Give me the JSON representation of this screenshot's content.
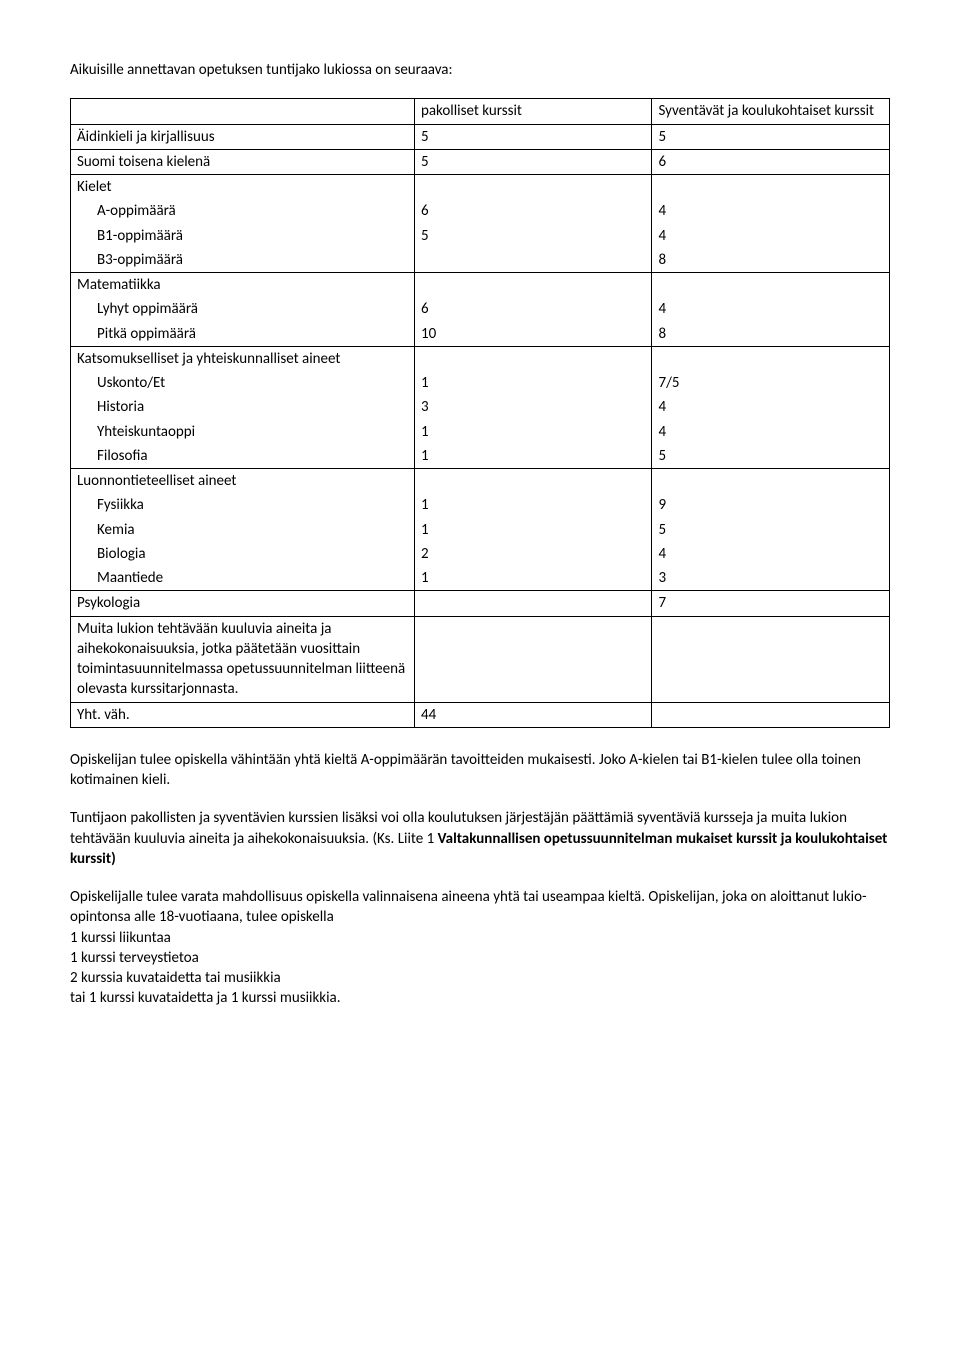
{
  "intro": "Aikuisille annettavan opetuksen tuntijako lukiossa on seuraava:",
  "table": {
    "header": {
      "col1": "",
      "col2": "pakolliset kurssit",
      "col3": "Syventävät ja koulukohtaiset kurssit"
    },
    "rows": [
      {
        "label": "Äidinkieli ja kirjallisuus",
        "a": "5",
        "b": "5",
        "indent": false
      },
      {
        "label": "Suomi toisena kielenä",
        "a": "5",
        "b": "6",
        "indent": false
      },
      {
        "label": "Kielet",
        "a": "",
        "b": "",
        "indent": false
      },
      {
        "label": "A-oppimäärä",
        "a": "6",
        "b": "4",
        "indent": true
      },
      {
        "label": "B1-oppimäärä",
        "a": "5",
        "b": "4",
        "indent": true
      },
      {
        "label": "B3-oppimäärä",
        "a": "",
        "b": "8",
        "indent": true
      },
      {
        "label": "Matematiikka",
        "a": "",
        "b": "",
        "indent": false
      },
      {
        "label": "Lyhyt oppimäärä",
        "a": "6",
        "b": "4",
        "indent": true
      },
      {
        "label": "Pitkä oppimäärä",
        "a": "10",
        "b": "8",
        "indent": true
      },
      {
        "label": "Katsomukselliset ja yhteiskunnalliset aineet",
        "a": "",
        "b": "",
        "indent": false
      },
      {
        "label": "Uskonto/Et",
        "a": "1",
        "b": "7/5",
        "indent": true
      },
      {
        "label": "Historia",
        "a": "3",
        "b": "4",
        "indent": true
      },
      {
        "label": "Yhteiskuntaoppi",
        "a": "1",
        "b": "4",
        "indent": true
      },
      {
        "label": "Filosofia",
        "a": "1",
        "b": "5",
        "indent": true
      },
      {
        "label": "Luonnontieteelliset aineet",
        "a": "",
        "b": "",
        "indent": false
      },
      {
        "label": "Fysiikka",
        "a": "1",
        "b": "9",
        "indent": true
      },
      {
        "label": "Kemia",
        "a": "1",
        "b": "5",
        "indent": true
      },
      {
        "label": "Biologia",
        "a": "2",
        "b": "4",
        "indent": true
      },
      {
        "label": "Maantiede",
        "a": "1",
        "b": "3",
        "indent": true
      },
      {
        "label": "Psykologia",
        "a": "",
        "b": "7",
        "indent": false
      },
      {
        "label": "Muita lukion tehtävään kuuluvia aineita ja aihekokonaisuuksia, jotka päätetään vuosittain toimintasuunnitelmassa opetussuunnitelman liitteenä olevasta kurssitarjonnasta.",
        "a": "",
        "b": "",
        "indent": false
      },
      {
        "label": "Yht. väh.",
        "a": "44",
        "b": "",
        "indent": false
      }
    ]
  },
  "para1": "Opiskelijan tulee opiskella vähintään yhtä kieltä A-oppimäärän tavoitteiden mukaisesti. Joko A-kielen tai B1-kielen tulee olla toinen kotimainen kieli.",
  "para2_a": "Tuntijaon pakollisten ja syventävien kurssien lisäksi voi olla koulutuksen järjestäjän päättämiä syventäviä kursseja ja muita lukion tehtävään kuuluvia aineita ja aihekokonaisuuksia. (Ks. Liite 1 ",
  "para2_b": "Valtakunnallisen opetussuunnitelman mukaiset kurssit ja koulukohtaiset kurssit)",
  "para3": "Opiskelijalle tulee varata mahdollisuus opiskella valinnaisena aineena yhtä tai useampaa kieltä. Opiskelijan, joka on aloittanut lukio-opintonsa alle 18-vuotiaana, tulee opiskella",
  "list": [
    "1 kurssi liikuntaa",
    "1 kurssi terveystietoa",
    "2 kurssia kuvataidetta tai musiikkia",
    "tai 1 kurssi kuvataidetta ja 1 kurssi musiikkia."
  ]
}
